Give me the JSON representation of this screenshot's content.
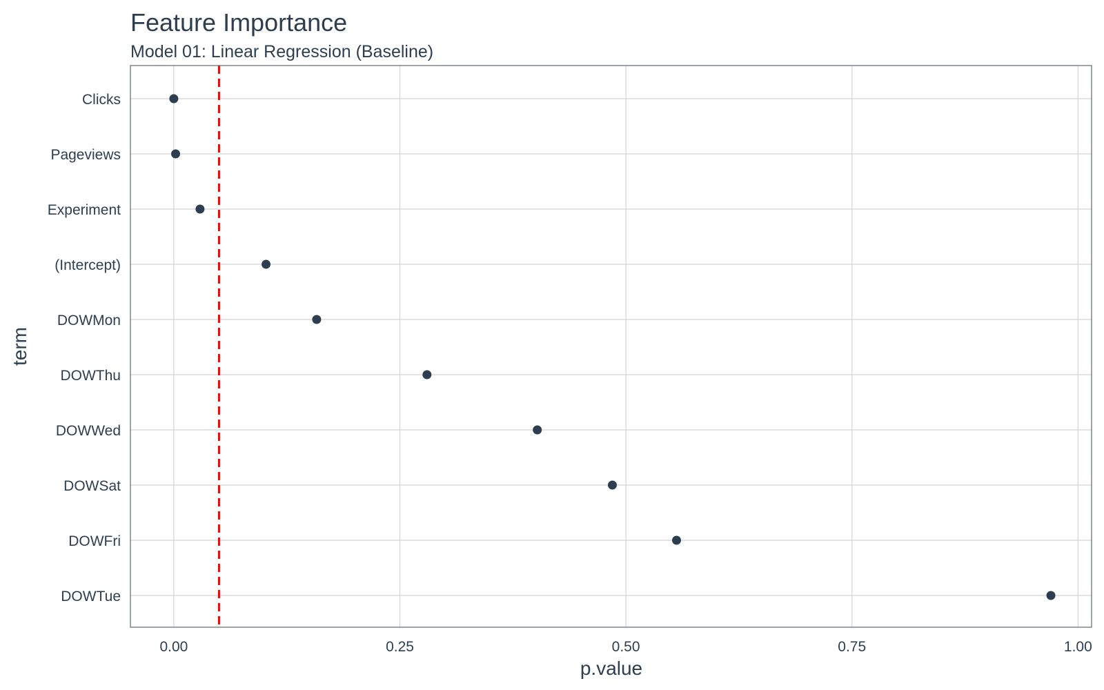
{
  "chart_data": {
    "type": "scatter",
    "title": "Feature Importance",
    "subtitle": "Model 01: Linear Regression (Baseline)",
    "xlabel": "p.value",
    "ylabel": "term",
    "xlim": [
      -0.048,
      1.015
    ],
    "x_ticks": [
      0,
      0.25,
      0.5,
      0.75,
      1
    ],
    "x_tick_labels": [
      "0.00",
      "0.25",
      "0.50",
      "0.75",
      "1.00"
    ],
    "reference_line": {
      "x": 0.05,
      "style": "dashed",
      "color": "#ff0000"
    },
    "grid": true,
    "legend": "none",
    "point_color": "#2c3e50",
    "terms": [
      "Clicks",
      "Pageviews",
      "Experiment",
      "(Intercept)",
      "DOWMon",
      "DOWThu",
      "DOWWed",
      "DOWSat",
      "DOWFri",
      "DOWTue"
    ],
    "values": [
      0.0,
      0.002,
      0.029,
      0.102,
      0.158,
      0.28,
      0.402,
      0.485,
      0.556,
      0.97
    ]
  }
}
